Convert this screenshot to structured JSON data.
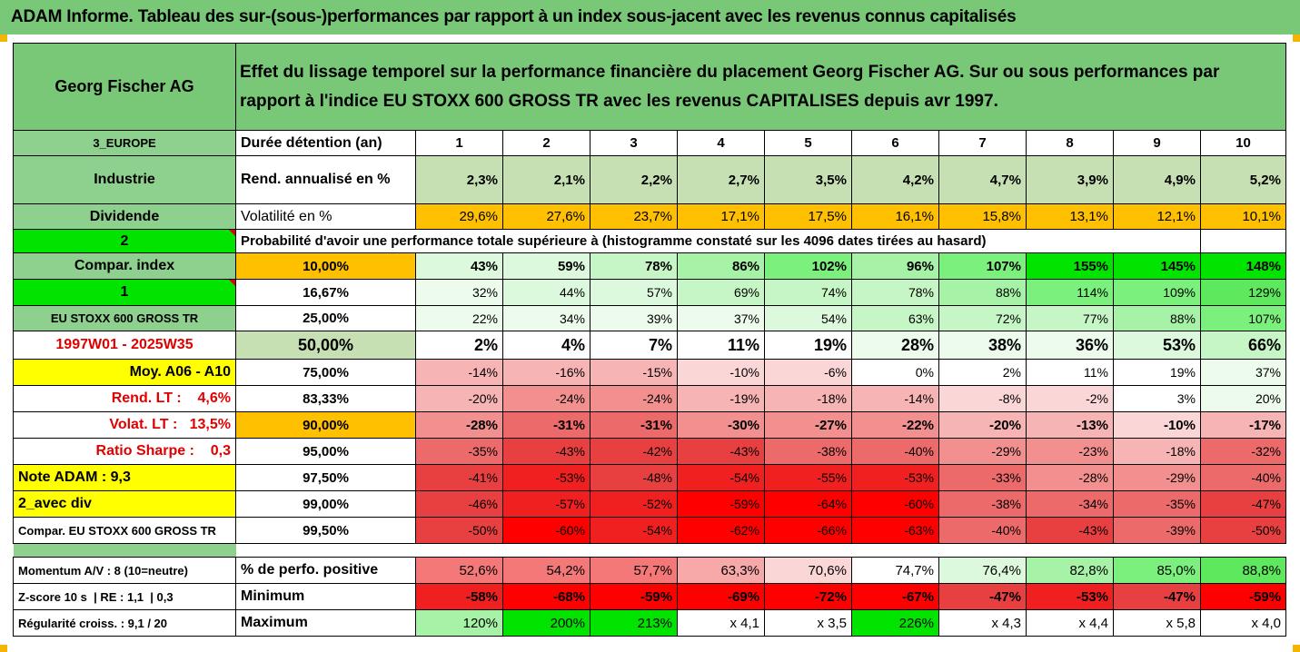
{
  "header": {
    "title": "ADAM Informe. Tableau des sur-(sous-)performances par rapport à un index sous-jacent avec les revenus connus capitalisés"
  },
  "asset": {
    "name": "Georg Fischer AG",
    "description": "Effet du lissage temporel sur la performance financière du placement Georg Fischer AG. Sur ou sous performances par rapport à l'indice EU STOXX 600 GROSS TR avec les revenus CAPITALISES depuis avr 1997."
  },
  "sidebar": {
    "region": "3_EUROPE",
    "sector": "Industrie",
    "dividend": "Dividende",
    "option_2": "2",
    "compar_index": "Compar. index",
    "option_1": "1",
    "index_name": "EU STOXX 600 GROSS TR",
    "period": "1997W01 - 2025W35",
    "moy": "Moy. A06 - A10",
    "rend_lt": "Rend. LT :    4,6%",
    "volat_lt": "Volat. LT :   13,5%",
    "ratio_sharpe": "Ratio Sharpe :    0,3",
    "note_adam": "Note ADAM : 9,3",
    "avec_div": "2_avec div",
    "compar_footer": "Compar. EU STOXX 600 GROSS TR"
  },
  "metrics": {
    "duree_label": "Durée détention (an)",
    "years": [
      "1",
      "2",
      "3",
      "4",
      "5",
      "6",
      "7",
      "8",
      "9",
      "10"
    ],
    "rend_label": "Rend. annualisé en %",
    "rend": [
      "2,3%",
      "2,1%",
      "2,2%",
      "2,7%",
      "3,5%",
      "4,2%",
      "4,7%",
      "3,9%",
      "4,9%",
      "5,2%"
    ],
    "vol_label": "Volatilité en %",
    "vol": [
      "29,6%",
      "27,6%",
      "23,7%",
      "17,1%",
      "17,5%",
      "16,1%",
      "15,8%",
      "13,1%",
      "12,1%",
      "10,1%"
    ],
    "proba_label": "Probabilité d'avoir une performance totale supérieure à (histogramme constaté sur les 4096 dates tirées au hasard)"
  },
  "quantiles": [
    {
      "q": "10,00%",
      "vals": [
        "43%",
        "59%",
        "78%",
        "86%",
        "102%",
        "96%",
        "107%",
        "155%",
        "145%",
        "148%"
      ]
    },
    {
      "q": "16,67%",
      "vals": [
        "32%",
        "44%",
        "57%",
        "69%",
        "74%",
        "78%",
        "88%",
        "114%",
        "109%",
        "129%"
      ]
    },
    {
      "q": "25,00%",
      "vals": [
        "22%",
        "34%",
        "39%",
        "37%",
        "54%",
        "63%",
        "72%",
        "77%",
        "88%",
        "107%"
      ]
    },
    {
      "q": "50,00%",
      "vals": [
        "2%",
        "4%",
        "7%",
        "11%",
        "19%",
        "28%",
        "38%",
        "36%",
        "53%",
        "66%"
      ]
    },
    {
      "q": "75,00%",
      "vals": [
        "-14%",
        "-16%",
        "-15%",
        "-10%",
        "-6%",
        "0%",
        "2%",
        "11%",
        "19%",
        "37%"
      ]
    },
    {
      "q": "83,33%",
      "vals": [
        "-20%",
        "-24%",
        "-24%",
        "-19%",
        "-18%",
        "-14%",
        "-8%",
        "-2%",
        "3%",
        "20%"
      ]
    },
    {
      "q": "90,00%",
      "vals": [
        "-28%",
        "-31%",
        "-31%",
        "-30%",
        "-27%",
        "-22%",
        "-20%",
        "-13%",
        "-10%",
        "-17%"
      ]
    },
    {
      "q": "95,00%",
      "vals": [
        "-35%",
        "-43%",
        "-42%",
        "-43%",
        "-38%",
        "-40%",
        "-29%",
        "-23%",
        "-18%",
        "-32%"
      ]
    },
    {
      "q": "97,50%",
      "vals": [
        "-41%",
        "-53%",
        "-48%",
        "-54%",
        "-55%",
        "-53%",
        "-33%",
        "-28%",
        "-29%",
        "-40%"
      ]
    },
    {
      "q": "99,00%",
      "vals": [
        "-46%",
        "-57%",
        "-52%",
        "-59%",
        "-64%",
        "-60%",
        "-38%",
        "-34%",
        "-35%",
        "-47%"
      ]
    },
    {
      "q": "99,50%",
      "vals": [
        "-50%",
        "-60%",
        "-54%",
        "-62%",
        "-66%",
        "-63%",
        "-40%",
        "-43%",
        "-39%",
        "-50%"
      ]
    }
  ],
  "footer": {
    "momentum": "Momentum A/V : 8 (10=neutre)",
    "zscore": "Z-score 10 s  | RE : 1,1  | 0,3",
    "regularite": "Régularité croiss. : 9,1 / 20",
    "positive_label": "% de perfo. positive",
    "positive": [
      "52,6%",
      "54,2%",
      "57,7%",
      "63,3%",
      "70,6%",
      "74,7%",
      "76,4%",
      "82,8%",
      "85,0%",
      "88,8%"
    ],
    "min_label": "Minimum",
    "min": [
      "-58%",
      "-68%",
      "-59%",
      "-69%",
      "-72%",
      "-67%",
      "-47%",
      "-53%",
      "-47%",
      "-59%"
    ],
    "max_label": "Maximum",
    "max": [
      "120%",
      "200%",
      "213%",
      "x 4,1",
      "x 3,5",
      "226%",
      "x 4,3",
      "x 4,4",
      "x 5,8",
      "x 4,0"
    ]
  },
  "colors": {
    "title_green": "#78c878",
    "label_green": "#8ed08e",
    "light_green": "#c6e0b4",
    "bright_green": "#00e400",
    "orange": "#ffc000",
    "yellow": "#ffff00",
    "strong_red": "#ff0000"
  }
}
